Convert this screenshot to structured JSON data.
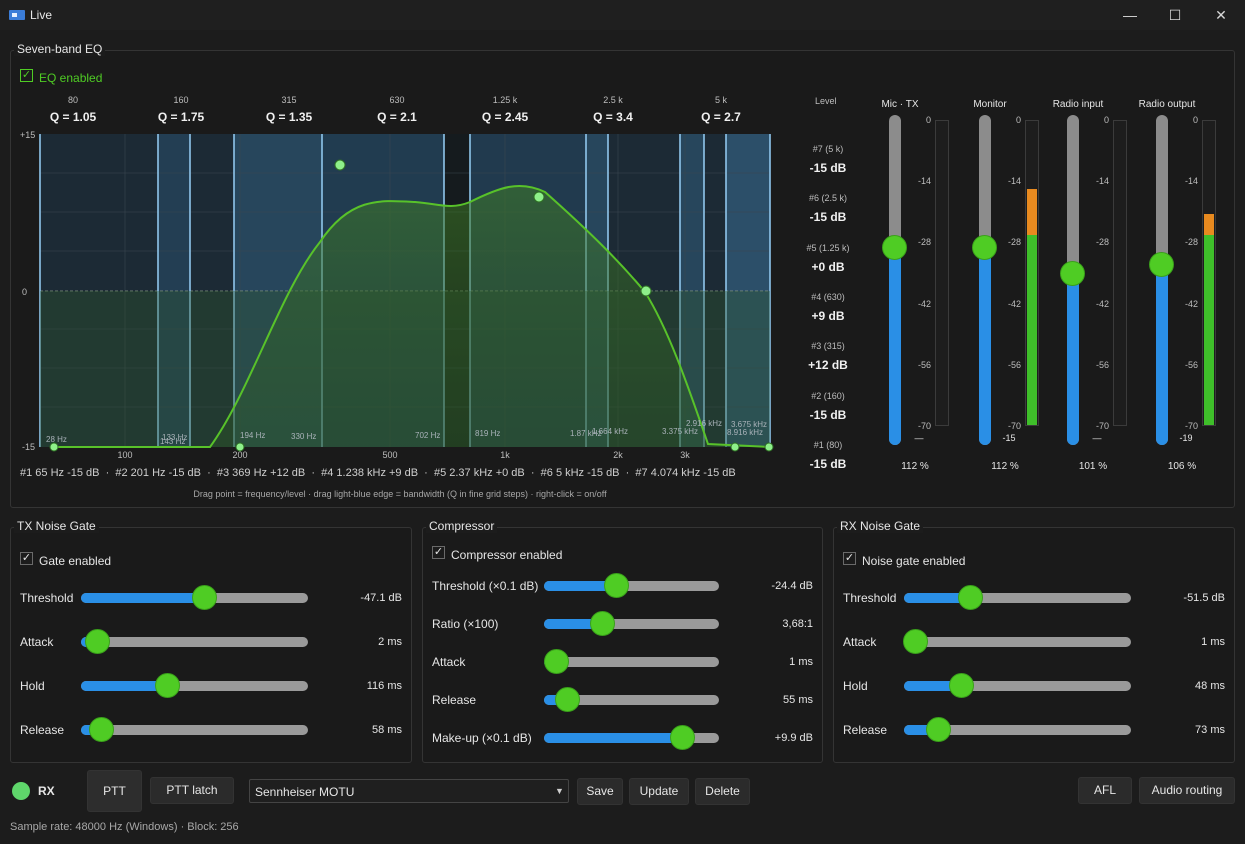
{
  "window": {
    "title": "Live",
    "min": "—",
    "max": "☐",
    "close": "✕"
  },
  "eq": {
    "group_title": "Seven-band EQ",
    "enabled_label": "EQ enabled",
    "enabled": true,
    "bands_header": [
      {
        "freq": "80",
        "q": "Q = 1.05"
      },
      {
        "freq": "160",
        "q": "Q = 1.75"
      },
      {
        "freq": "315",
        "q": "Q = 1.35"
      },
      {
        "freq": "630",
        "q": "Q = 2.1"
      },
      {
        "freq": "1.25 k",
        "q": "Q = 2.45"
      },
      {
        "freq": "2.5 k",
        "q": "Q = 3.4"
      },
      {
        "freq": "5 k",
        "q": "Q = 2.7"
      }
    ],
    "y_labels": [
      "+15",
      "0",
      "-15"
    ],
    "x_labels": [
      "100",
      "200",
      "500",
      "1k",
      "2k",
      "3k"
    ],
    "edge_labels": [
      "28 Hz",
      "133 Hz",
      "143 Hz",
      "194 Hz",
      "330 Hz",
      "702 Hz",
      "819 Hz",
      "1.87 kHz",
      "1.664 kHz",
      "3.375 kHz",
      "2.916 kHz",
      "3.675 kHz",
      "8.916 kHz"
    ],
    "summary": "#1 65 Hz -15 dB  ·  #2 201 Hz -15 dB  ·  #3 369 Hz +12 dB  ·  #4 1.238 kHz +9 dB  ·  #5 2.37 kHz +0 dB  ·  #6 5 kHz -15 dB  ·  #7 4.074 kHz -15 dB",
    "hint": "Drag point = frequency/level · drag light-blue edge = bandwidth (Q in fine grid steps) · right-click = on/off",
    "level_header": "Level",
    "levels": [
      {
        "name": "#7 (5 k)",
        "value": "-15 dB"
      },
      {
        "name": "#6 (2.5 k)",
        "value": "-15 dB"
      },
      {
        "name": "#5 (1.25 k)",
        "value": "+0 dB"
      },
      {
        "name": "#4 (630)",
        "value": "+9 dB"
      },
      {
        "name": "#3 (315)",
        "value": "+12 dB"
      },
      {
        "name": "#2 (160)",
        "value": "-15 dB"
      },
      {
        "name": "#1 (80)",
        "value": "-15 dB"
      }
    ]
  },
  "meters": {
    "scale": [
      "0",
      "-14",
      "-28",
      "-42",
      "-56",
      "-70"
    ],
    "items": [
      {
        "title": "Mic · TX",
        "percent": "112 %",
        "peak": "—",
        "fader_fraction": 0.6,
        "level_green": 0.0,
        "level_orange": 0.0
      },
      {
        "title": "Monitor",
        "percent": "112 %",
        "peak": "-15",
        "fader_fraction": 0.6,
        "level_green": 0.62,
        "level_orange": 0.15
      },
      {
        "title": "Radio input",
        "percent": "101 %",
        "peak": "—",
        "fader_fraction": 0.52,
        "level_green": 0.0,
        "level_orange": 0.0
      },
      {
        "title": "Radio output",
        "percent": "106 %",
        "peak": "-19",
        "fader_fraction": 0.55,
        "level_green": 0.62,
        "level_orange": 0.07
      }
    ]
  },
  "tx_gate": {
    "title": "TX Noise Gate",
    "enabled_label": "Gate enabled",
    "params": [
      {
        "label": "Threshold",
        "value": "-47.1 dB",
        "fraction": 0.54
      },
      {
        "label": "Attack",
        "value": "2 ms",
        "fraction": 0.07
      },
      {
        "label": "Hold",
        "value": "116 ms",
        "fraction": 0.38
      },
      {
        "label": "Release",
        "value": "58 ms",
        "fraction": 0.09
      }
    ]
  },
  "compressor": {
    "title": "Compressor",
    "enabled_label": "Compressor enabled",
    "params": [
      {
        "label": "Threshold (×0.1 dB)",
        "value": "-24.4 dB",
        "fraction": 0.41
      },
      {
        "label": "Ratio (×100)",
        "value": "3,68:1",
        "fraction": 0.33
      },
      {
        "label": "Attack",
        "value": "1 ms",
        "fraction": 0.07
      },
      {
        "label": "Release",
        "value": "55 ms",
        "fraction": 0.13
      },
      {
        "label": "Make-up (×0.1 dB)",
        "value": "+9.9 dB",
        "fraction": 0.79
      }
    ]
  },
  "rx_gate": {
    "title": "RX Noise Gate",
    "enabled_label": "Noise gate enabled",
    "params": [
      {
        "label": "Threshold",
        "value": "-51.5 dB",
        "fraction": 0.29
      },
      {
        "label": "Attack",
        "value": "1 ms",
        "fraction": 0.05
      },
      {
        "label": "Hold",
        "value": "48 ms",
        "fraction": 0.25
      },
      {
        "label": "Release",
        "value": "73 ms",
        "fraction": 0.15
      }
    ]
  },
  "bottom": {
    "rx_label": "RX",
    "ptt": "PTT",
    "ptt_latch": "PTT latch",
    "preset": "Sennheiser MOTU",
    "save": "Save",
    "update": "Update",
    "delete": "Delete",
    "afl": "AFL",
    "routing": "Audio routing",
    "status": "Sample rate: 48000 Hz (Windows)   ·   Block: 256"
  }
}
